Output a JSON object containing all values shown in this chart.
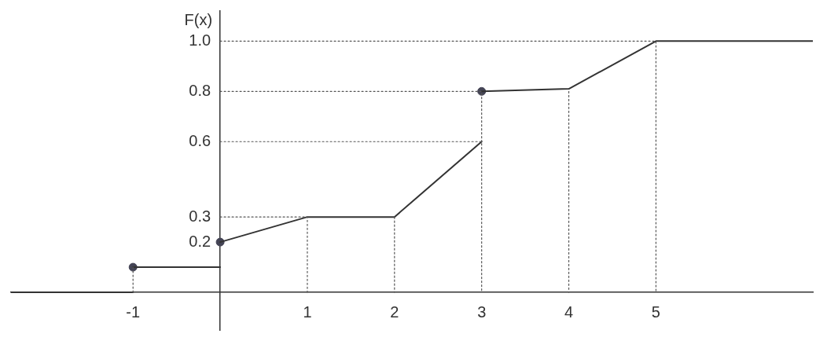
{
  "chart_data": {
    "type": "line",
    "ylabel": "F(x)",
    "grid": false,
    "legend": false,
    "xlim": [
      -2.4,
      6.8
    ],
    "ylim": [
      -0.15,
      1.12
    ],
    "xticks": [
      -1,
      1,
      2,
      3,
      4,
      5
    ],
    "yticks": [
      0.2,
      0.3,
      0.6,
      0.8,
      {
        "value": 1.0,
        "label": "1.0"
      }
    ],
    "series": [
      {
        "type": "line",
        "color": "#555555",
        "line_style": "dotted",
        "x": [
          0,
          5,
          5,
          null,
          0,
          3,
          3,
          null,
          0,
          3,
          3,
          null,
          0,
          1,
          1,
          null,
          2,
          2,
          null,
          4,
          4,
          null,
          -1,
          -1
        ],
        "values": [
          1.0,
          1.0,
          0,
          null,
          0.8,
          0.8,
          0.6,
          null,
          0.6,
          0.6,
          0,
          null,
          0.3,
          0.3,
          0,
          null,
          0.3,
          0,
          null,
          0.8,
          0,
          null,
          0.1,
          0
        ]
      },
      {
        "type": "line",
        "color": "#333333",
        "line_style": "solid",
        "x": [
          -2.4,
          -1,
          null,
          -1,
          0,
          null,
          0,
          1,
          2,
          3,
          null,
          3,
          4,
          5,
          6.8
        ],
        "values": [
          0,
          0,
          null,
          0.1,
          0.1,
          null,
          0.2,
          0.3,
          0.3,
          0.6,
          null,
          0.8,
          0.81,
          1.0,
          1.0
        ]
      },
      {
        "type": "scatter",
        "color": "#444455",
        "marker": "circle",
        "x": [
          -1,
          0,
          3
        ],
        "values": [
          0.1,
          0.2,
          0.8
        ]
      }
    ]
  }
}
